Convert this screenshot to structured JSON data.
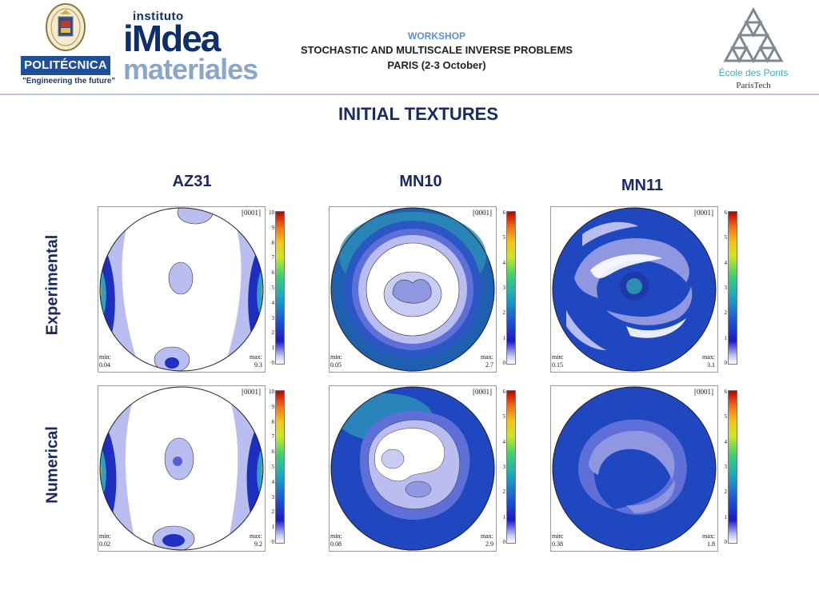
{
  "header": {
    "upm": {
      "name": "POLITÉCNICA",
      "tagline": "\"Engineering the future\""
    },
    "imdea": {
      "line1": "instituto",
      "line2": "iMdea",
      "line3": "materiales"
    },
    "workshop": {
      "title": "WORKSHOP",
      "subtitle": "STOCHASTIC AND MULTISCALE INVERSE PROBLEMS",
      "location": "PARIS (2-3 October)"
    },
    "ecole": {
      "name": "École des Ponts",
      "sub": "ParisTech"
    }
  },
  "slide_title": "INITIAL TEXTURES",
  "columns": [
    "AZ31",
    "MN10",
    "MN11"
  ],
  "rows": [
    "Experimental",
    "Numerical"
  ],
  "colors": {
    "title": "#1a2a63",
    "accent": "#5b8fd6",
    "upm_blue": "#1f4e9a"
  },
  "pole_figures": [
    {
      "id": "az31-exp",
      "index_label": "[0001]",
      "min_label": "min:",
      "min_value": "0.04",
      "max_label": "max:",
      "max_value": "9.3",
      "scale_ticks": [
        "10",
        "9",
        "8",
        "7",
        "6",
        "5",
        "4",
        "3",
        "2",
        "1",
        "0"
      ]
    },
    {
      "id": "mn10-exp",
      "index_label": "[0001]",
      "min_label": "min:",
      "min_value": "0.05",
      "max_label": "max:",
      "max_value": "2.7",
      "scale_ticks": [
        "6",
        "5",
        "4",
        "3",
        "2",
        "1",
        "0"
      ]
    },
    {
      "id": "mn11-exp",
      "index_label": "[0001]",
      "min_label": "min:",
      "min_value": "0.15",
      "max_label": "max:",
      "max_value": "3.1",
      "scale_ticks": [
        "6",
        "5",
        "4",
        "3",
        "2",
        "1",
        "0"
      ]
    },
    {
      "id": "az31-num",
      "index_label": "[0001]",
      "min_label": "min:",
      "min_value": "0.02",
      "max_label": "max:",
      "max_value": "9.2",
      "scale_ticks": [
        "10",
        "9",
        "8",
        "7",
        "6",
        "5",
        "4",
        "3",
        "2",
        "1",
        "0"
      ]
    },
    {
      "id": "mn10-num",
      "index_label": "[0001]",
      "min_label": "min:",
      "min_value": "0.08",
      "max_label": "max:",
      "max_value": "2.9",
      "scale_ticks": [
        "6",
        "5",
        "4",
        "3",
        "2",
        "1",
        "0"
      ]
    },
    {
      "id": "mn11-num",
      "index_label": "[0001]",
      "min_label": "min:",
      "min_value": "0.38",
      "max_label": "max:",
      "max_value": "1.8",
      "scale_ticks": [
        "6",
        "5",
        "4",
        "3",
        "2",
        "1",
        "0"
      ]
    }
  ]
}
